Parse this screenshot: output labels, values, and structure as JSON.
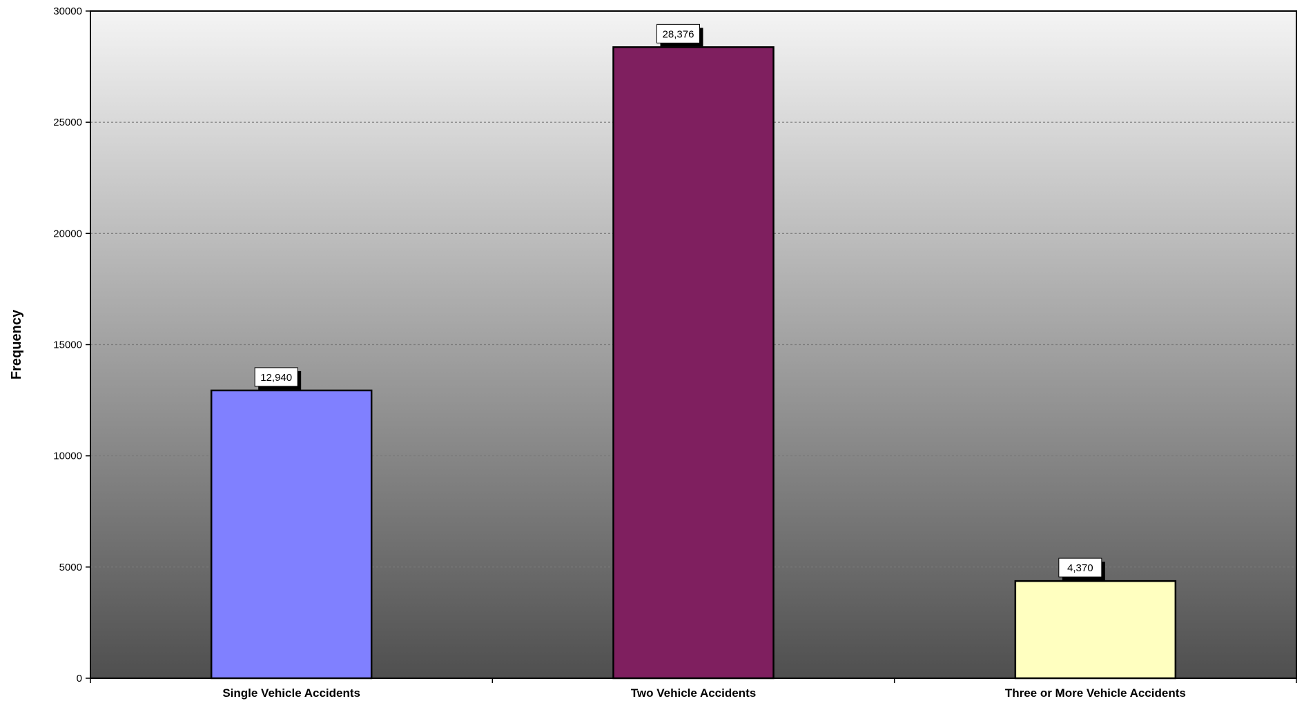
{
  "chart_data": {
    "type": "bar",
    "title": "",
    "xlabel": "",
    "ylabel": "Frequency",
    "categories": [
      "Single Vehicle Accidents",
      "Two Vehicle Accidents",
      "Three or More Vehicle Accidents"
    ],
    "values": [
      12940,
      28376,
      4370
    ],
    "data_labels": [
      "12,940",
      "28,376",
      "4,370"
    ],
    "bar_colors": [
      "#8080FF",
      "#7F1F5F",
      "#FFFFC0"
    ],
    "ylim": [
      0,
      30000
    ],
    "yticks": [
      0,
      5000,
      10000,
      15000,
      20000,
      25000,
      30000
    ],
    "ytick_labels": [
      "0",
      "5000",
      "10000",
      "15000",
      "20000",
      "25000",
      "30000"
    ],
    "grid": true,
    "legend": "none",
    "background": "gradient light gray to dark gray"
  }
}
